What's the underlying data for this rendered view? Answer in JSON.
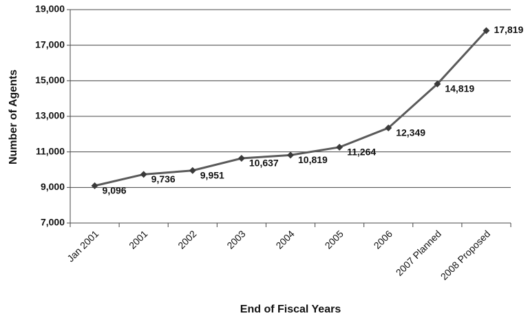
{
  "chart_data": {
    "type": "line",
    "x_label": "End of Fiscal Years",
    "y_label": "Number of Agents",
    "categories": [
      "Jan 2001",
      "2001",
      "2002",
      "2003",
      "2004",
      "2005",
      "2006",
      "2007 Planned",
      "2008 Proposed"
    ],
    "values": [
      9096,
      9736,
      9951,
      10637,
      10819,
      11264,
      12349,
      14819,
      17819
    ],
    "value_labels": [
      "9,096",
      "9,736",
      "9,951",
      "10,637",
      "10,819",
      "11,264",
      "12,349",
      "14,819",
      "17,819"
    ],
    "color": "#5a5a5a",
    "marker_color": "#3a3a3a",
    "ylim": [
      7000,
      19000
    ],
    "yticks": [
      {
        "value": 7000,
        "label": "7,000"
      },
      {
        "value": 9000,
        "label": "9,000"
      },
      {
        "value": 11000,
        "label": "11,000"
      },
      {
        "value": 13000,
        "label": "13,000"
      },
      {
        "value": 15000,
        "label": "15,000"
      },
      {
        "value": 17000,
        "label": "17,000"
      },
      {
        "value": 19000,
        "label": "19,000"
      }
    ],
    "grid": true
  }
}
